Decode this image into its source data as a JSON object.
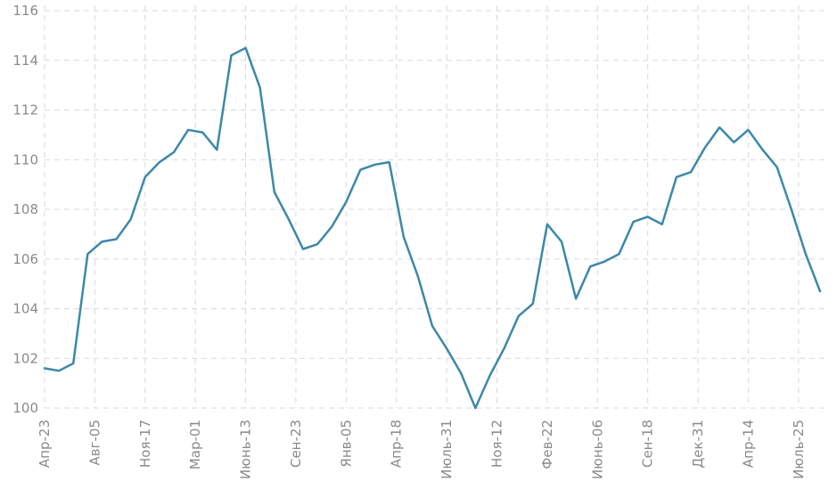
{
  "chart_data": {
    "type": "line",
    "title": "",
    "xlabel": "",
    "ylabel": "",
    "ylim": [
      100,
      116
    ],
    "yticks": [
      100,
      102,
      104,
      106,
      108,
      110,
      112,
      114,
      116
    ],
    "grid": true,
    "x_tick_labels": [
      {
        "index": 0,
        "label": "Апр-23"
      },
      {
        "index": 3.5,
        "label": "Авг-05"
      },
      {
        "index": 7,
        "label": "Ноя-17"
      },
      {
        "index": 10.5,
        "label": "Мар-01"
      },
      {
        "index": 14,
        "label": "Июнь-13"
      },
      {
        "index": 17.5,
        "label": "Сен-23"
      },
      {
        "index": 21,
        "label": "Янв-05"
      },
      {
        "index": 24.5,
        "label": "Апр-18"
      },
      {
        "index": 28,
        "label": "Июль-31"
      },
      {
        "index": 31.5,
        "label": "Ноя-12"
      },
      {
        "index": 35,
        "label": "Фев-22"
      },
      {
        "index": 38.5,
        "label": "Июнь-06"
      },
      {
        "index": 42,
        "label": "Сен-18"
      },
      {
        "index": 45.5,
        "label": "Дек-31"
      },
      {
        "index": 49,
        "label": "Апр-14"
      },
      {
        "index": 52.5,
        "label": "Июль-25"
      }
    ],
    "series": [
      {
        "color": "#3d88a8",
        "values": [
          101.6,
          101.5,
          101.8,
          106.2,
          106.7,
          106.8,
          107.6,
          109.3,
          109.9,
          110.3,
          111.2,
          111.1,
          110.4,
          114.2,
          114.5,
          112.9,
          108.7,
          107.6,
          106.4,
          106.6,
          107.3,
          108.3,
          109.6,
          109.8,
          109.9,
          106.9,
          105.3,
          103.3,
          102.4,
          101.4,
          100.0,
          101.3,
          102.4,
          103.7,
          104.2,
          107.4,
          106.7,
          104.4,
          105.7,
          105.9,
          106.2,
          107.5,
          107.7,
          107.4,
          109.3,
          109.5,
          110.5,
          111.3,
          110.7,
          111.2,
          110.4,
          109.7,
          108.0,
          106.2,
          104.7
        ]
      }
    ]
  }
}
